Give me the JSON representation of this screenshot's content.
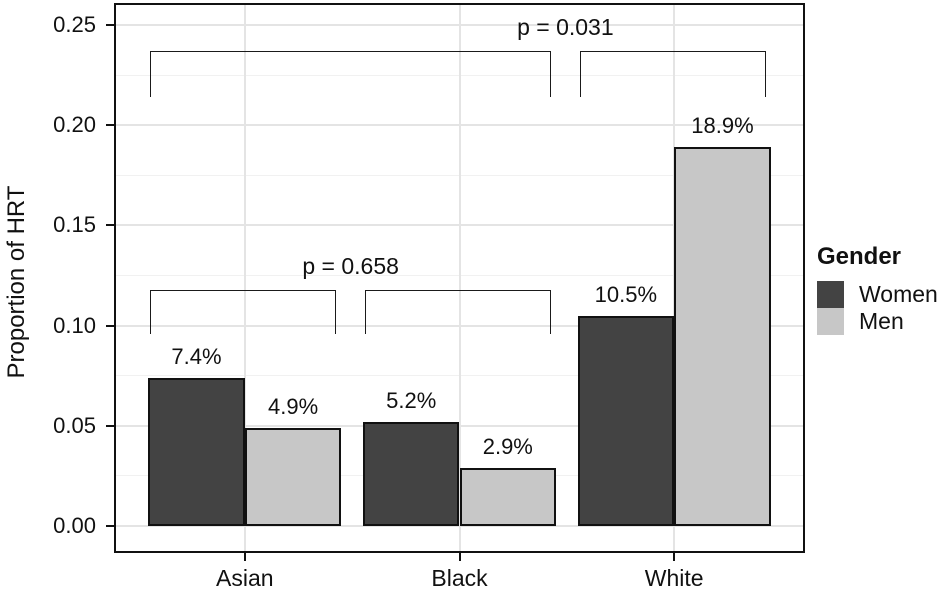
{
  "chart_data": {
    "type": "bar",
    "ylabel": "Proportion of HRT",
    "categories": [
      "Asian",
      "Black",
      "White"
    ],
    "series": [
      {
        "name": "Women",
        "color": "#434343",
        "values": [
          0.074,
          0.052,
          0.105
        ],
        "value_labels": [
          "7.4%",
          "5.2%",
          "10.5%"
        ]
      },
      {
        "name": "Men",
        "color": "#c7c7c7",
        "values": [
          0.049,
          0.029,
          0.189
        ],
        "value_labels": [
          "4.9%",
          "2.9%",
          "18.9%"
        ]
      }
    ],
    "ylim": [
      0,
      0.25
    ],
    "y_ticks": [
      0,
      0.05,
      0.1,
      0.15,
      0.2,
      0.25
    ],
    "y_tick_labels": [
      "0.00",
      "0.05",
      "0.10",
      "0.15",
      "0.20",
      "0.25"
    ],
    "grid": true,
    "legend": {
      "title": "Gender",
      "position": "right",
      "entries": [
        "Women",
        "Men"
      ]
    },
    "annotations": [
      {
        "type": "comparison",
        "label": "p = 0.031",
        "groups_a": [
          "Asian",
          "Black"
        ],
        "groups_b": [
          "White"
        ]
      },
      {
        "type": "comparison",
        "label": "p = 0.658",
        "groups_a": [
          "Asian"
        ],
        "groups_b": [
          "Black"
        ]
      }
    ],
    "bar_border_color": "#111111",
    "panel_border_color": "#111111"
  }
}
